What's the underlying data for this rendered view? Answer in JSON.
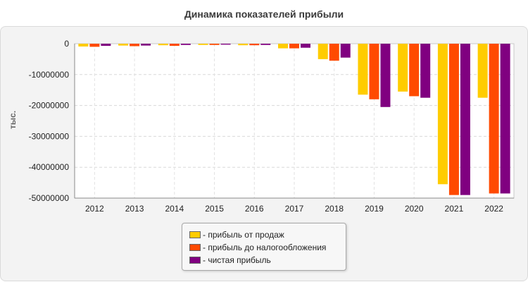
{
  "chart_data": {
    "type": "bar",
    "title": "Динамика показателей прибыли",
    "ylabel": "тыс.",
    "xlabel": "",
    "categories": [
      "2012",
      "2013",
      "2014",
      "2015",
      "2016",
      "2017",
      "2018",
      "2019",
      "2020",
      "2021",
      "2022"
    ],
    "ylim": [
      -50000000,
      0
    ],
    "yticks": [
      0,
      -10000000,
      -20000000,
      -30000000,
      -40000000,
      -50000000
    ],
    "ytick_labels": [
      "0",
      "-10000000",
      "-20000000",
      "-30000000",
      "-40000000",
      "-50000000"
    ],
    "grid": true,
    "legend_position": "bottom-center",
    "series": [
      {
        "name": "- прибыль от продаж",
        "color": "#ffcc00",
        "values": [
          -900000,
          -600000,
          -500000,
          -400000,
          -500000,
          -1500000,
          -5000000,
          -16500000,
          -15500000,
          -45500000,
          -17500000
        ]
      },
      {
        "name": "- прибыль до налогообложения",
        "color": "#ff4a00",
        "values": [
          -1000000,
          -800000,
          -700000,
          -400000,
          -500000,
          -1500000,
          -5500000,
          -18000000,
          -17000000,
          -49000000,
          -48500000
        ]
      },
      {
        "name": "- чистая прибыль",
        "color": "#800080",
        "values": [
          -700000,
          -600000,
          -400000,
          -300000,
          -400000,
          -1300000,
          -4500000,
          -20500000,
          -17500000,
          -49000000,
          -48500000
        ]
      }
    ]
  }
}
